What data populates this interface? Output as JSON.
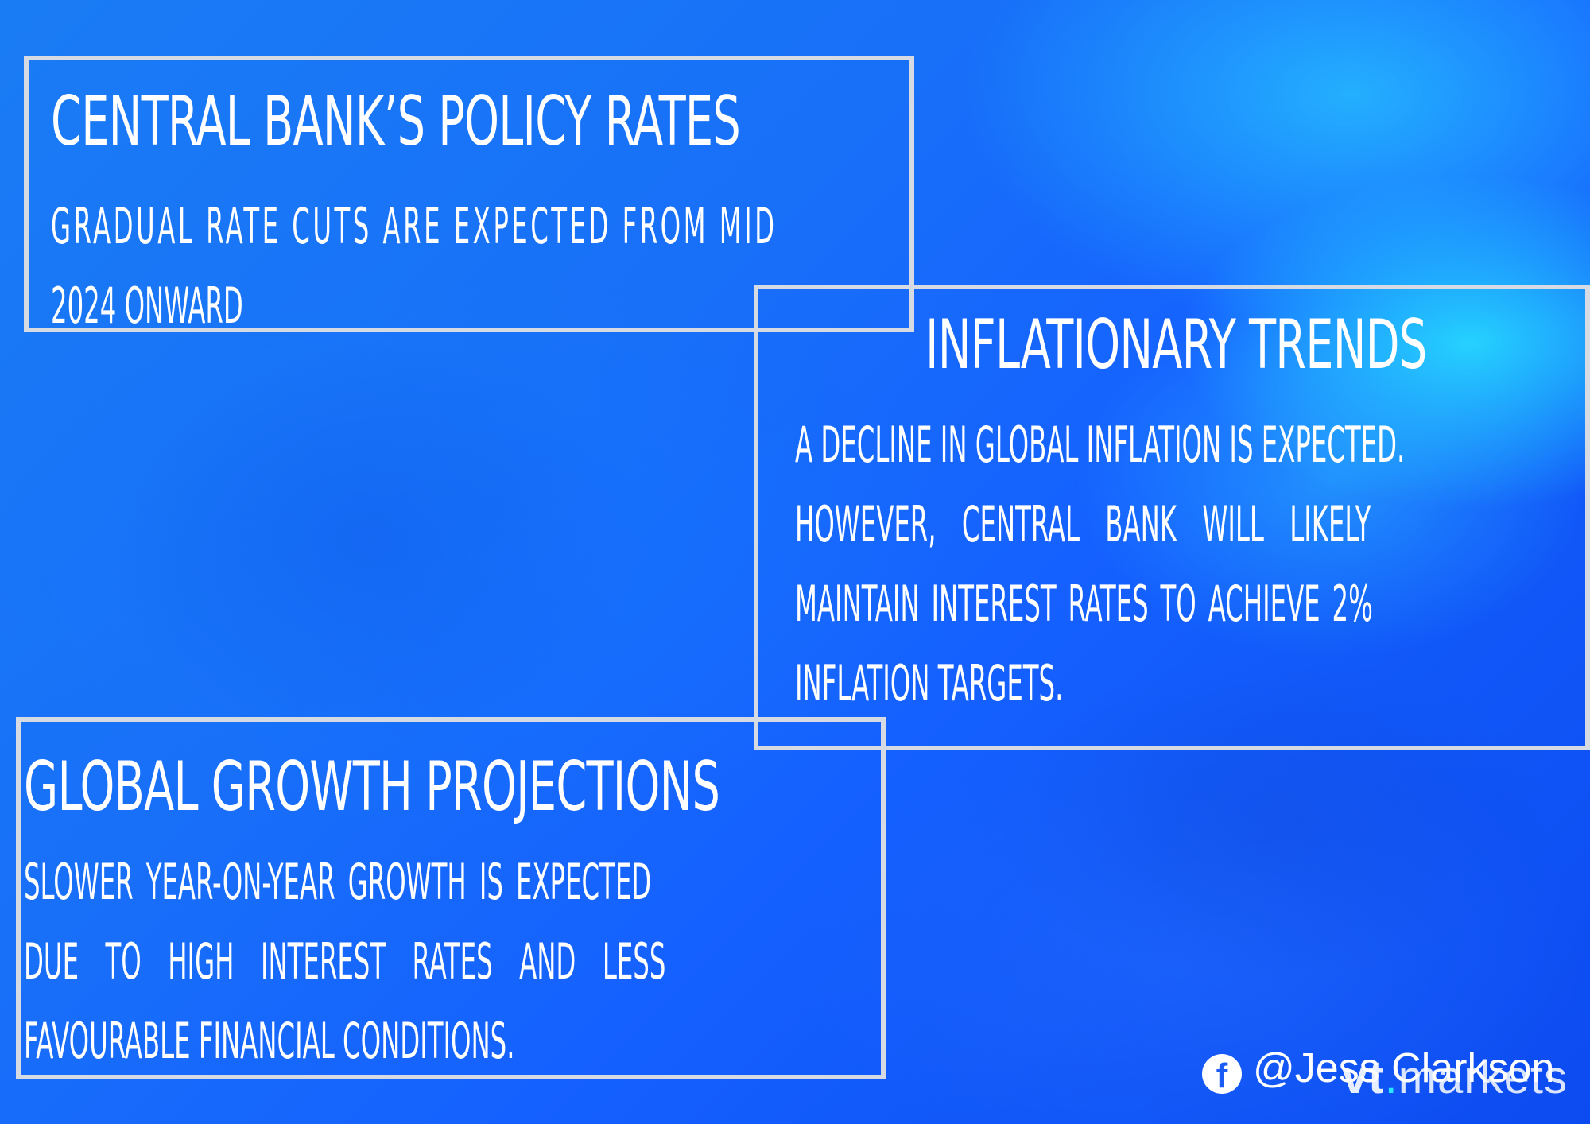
{
  "panels": {
    "policy_rates": {
      "title": "Central Bank’s Policy Rates",
      "body_lines": [
        "Gradual rate cuts are expected from mid",
        "2024 onward"
      ]
    },
    "inflation": {
      "title": "Inflationary Trends",
      "body_lines": [
        "A decline in global inflation is expected.",
        "However, central bank will likely",
        "maintain interest rates to achieve 2%",
        "inflation targets."
      ]
    },
    "growth": {
      "title": "Global Growth Projections",
      "body_lines": [
        "Slower year-on-year growth is expected",
        "due to high interest rates and less",
        "favourable financial conditions."
      ]
    }
  },
  "footer": {
    "social_icon": "facebook-icon",
    "handle": "@Jess Clarkson",
    "brand_prefix": "vt",
    "brand_suffix": "markets"
  },
  "colors": {
    "background_start": "#1a7cf5",
    "background_end": "#0c4bf0",
    "accent_cyan": "#28e6ff",
    "panel_border": "#d6dbe3",
    "text": "#ffffff"
  }
}
